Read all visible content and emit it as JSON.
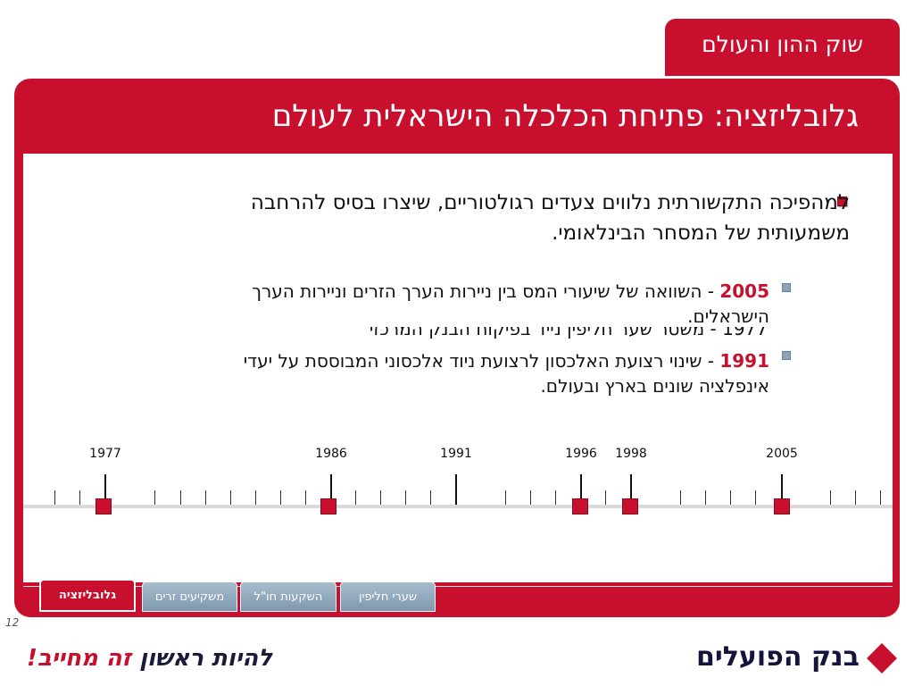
{
  "header": {
    "section_tab": "שוק ההון והעולם",
    "slide_title": "גלובליזציה: פתיחת הכלכלה הישראלית לעולם"
  },
  "content": {
    "main_bullet": "למהפיכה התקשורתית נלווים צעדים רגולטוריים, שיצרו בסיס להרחבה משמעותית של המסחר הבינלאומי.",
    "sub_bullets": [
      {
        "year": "2005",
        "text": " - השוואה של שיעורי המס בין ניירות הערך הזרים וניירות הערך הישראלים."
      },
      {
        "year": "1991",
        "text": " - שינוי רצועת האלכסון לרצועת ניוד אלכסוני המבוססת על יעדי אינפלציה שונים בארץ ובעולם."
      }
    ],
    "ghost_line": "1977 - משטר שער חליפין נייד בפיקוח הבנק המרכזי"
  },
  "timeline": {
    "years": [
      "1977",
      "1986",
      "1991",
      "1996",
      "1998",
      "2005"
    ]
  },
  "nav_tabs": [
    "גלובליזציה",
    "משקיעים זרים",
    "השקעות חו\"ל",
    "שערי חליפין"
  ],
  "footer": {
    "page_number": "12",
    "slogan_part1": "להיות ראשון ",
    "slogan_part2": "זה מחייב!",
    "bank_name": "בנק הפועלים"
  },
  "colors": {
    "accent": "#c8102e",
    "tab_inactive": "#8ea2b8"
  }
}
